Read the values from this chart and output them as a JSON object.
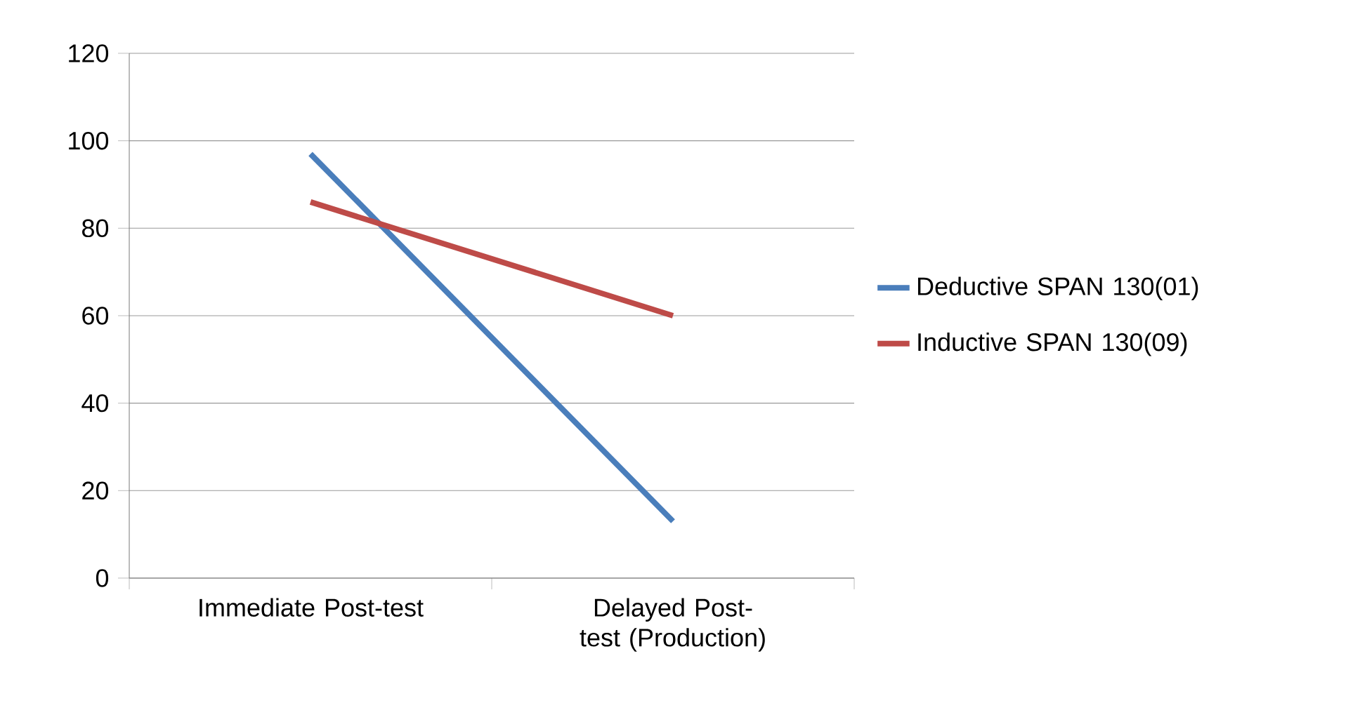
{
  "chart_data": {
    "type": "line",
    "categories": [
      "Immediate Post-test",
      "Delayed Post-test (Production)"
    ],
    "series": [
      {
        "name": "Deductive SPAN 130(01)",
        "color": "#4a7ebb",
        "values": [
          97,
          13
        ]
      },
      {
        "name": "Inductive SPAN 130(09)",
        "color": "#be4b48",
        "values": [
          86,
          60
        ]
      }
    ],
    "ylim": [
      0,
      120
    ],
    "yticks": [
      0,
      20,
      40,
      60,
      80,
      100,
      120
    ],
    "grid": "y",
    "legend": "right",
    "marker": "none",
    "line_style": "solid"
  }
}
